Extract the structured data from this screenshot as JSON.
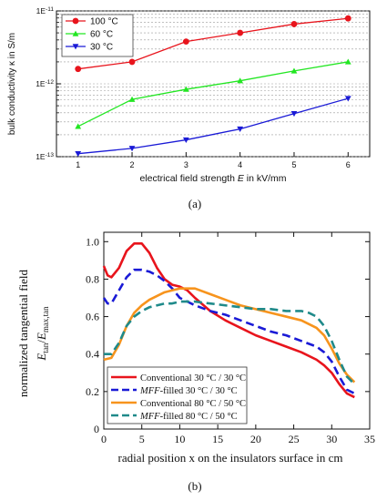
{
  "chart_data": [
    {
      "type": "line",
      "panel_label": "(a)",
      "title": "",
      "xlabel": "electrical field strength E in kV/mm",
      "xlabel_parts": [
        "electrical field strength ",
        "E",
        " in kV/mm"
      ],
      "ylabel": "bulk conductivity κ in S/m",
      "xlim": [
        0.6,
        6.4
      ],
      "ylim": [
        1e-13,
        1e-11
      ],
      "yscale": "log",
      "x_ticks": [
        1,
        2,
        3,
        4,
        5,
        6
      ],
      "x_tick_labels": [
        "1",
        "2",
        "3",
        "4",
        "5",
        "6"
      ],
      "y_ticks": [
        1e-13,
        1e-12,
        1e-11
      ],
      "y_tick_labels": [
        "1E-13",
        "1E-12",
        "1E-11"
      ],
      "grid": true,
      "legend_position": "top-left",
      "x": [
        1,
        2,
        3,
        4,
        5,
        6
      ],
      "series": [
        {
          "name": "100 °C",
          "color": "#e8141c",
          "marker": "circle",
          "values": [
            1.6e-12,
            2e-12,
            3.8e-12,
            5e-12,
            6.6e-12,
            7.9e-12
          ]
        },
        {
          "name": "60 °C",
          "color": "#22e622",
          "marker": "triangle-up",
          "values": [
            2.6e-13,
            6.1e-13,
            8.4e-13,
            1.1e-12,
            1.5e-12,
            2e-12
          ]
        },
        {
          "name": "30 °C",
          "color": "#1a1ad6",
          "marker": "triangle-down",
          "values": [
            1.1e-13,
            1.3e-13,
            1.7e-13,
            2.4e-13,
            3.9e-13,
            6.3e-13
          ]
        }
      ]
    },
    {
      "type": "line",
      "panel_label": "(b)",
      "title": "",
      "xlabel": "radial position x on the insulators surface in cm",
      "ylabel_line1": "normalized tangential field",
      "ylabel_line2": "E_tan/E_max,tan",
      "xlim": [
        0,
        35
      ],
      "ylim": [
        0,
        1.05
      ],
      "x_ticks": [
        0,
        5,
        10,
        15,
        20,
        25,
        30,
        35
      ],
      "x_tick_labels": [
        "0",
        "5",
        "10",
        "15",
        "20",
        "25",
        "30",
        "35"
      ],
      "y_ticks": [
        0,
        0.2,
        0.4,
        0.6,
        0.8,
        1.0
      ],
      "y_tick_labels": [
        "0",
        "0.2",
        "0.4",
        "0.6",
        "0.8",
        "1.0"
      ],
      "grid": false,
      "legend_position": "bottom-left",
      "series": [
        {
          "name": "Conventional 30 °C / 30 °C",
          "name_parts": [
            "",
            "Conventional 30 °C / 30 °C"
          ],
          "color": "#e8141c",
          "dash": "solid",
          "points": [
            [
              0,
              0.87
            ],
            [
              0.5,
              0.82
            ],
            [
              1,
              0.81
            ],
            [
              2,
              0.86
            ],
            [
              3,
              0.95
            ],
            [
              4,
              0.99
            ],
            [
              5,
              0.99
            ],
            [
              6,
              0.94
            ],
            [
              7,
              0.86
            ],
            [
              8,
              0.8
            ],
            [
              9,
              0.77
            ],
            [
              10,
              0.76
            ],
            [
              11,
              0.74
            ],
            [
              12,
              0.7
            ],
            [
              14,
              0.63
            ],
            [
              16,
              0.58
            ],
            [
              18,
              0.54
            ],
            [
              20,
              0.5
            ],
            [
              22,
              0.47
            ],
            [
              24,
              0.44
            ],
            [
              26,
              0.41
            ],
            [
              28,
              0.37
            ],
            [
              29,
              0.34
            ],
            [
              30,
              0.3
            ],
            [
              31,
              0.24
            ],
            [
              32,
              0.19
            ],
            [
              33,
              0.17
            ]
          ]
        },
        {
          "name": "MFF-filled 30 °C / 30 °C",
          "name_parts": [
            "MFF",
            "-filled 30 °C / 30 °C"
          ],
          "color": "#1a1ad6",
          "dash": "dashed",
          "points": [
            [
              0,
              0.7
            ],
            [
              0.5,
              0.67
            ],
            [
              1,
              0.67
            ],
            [
              2,
              0.74
            ],
            [
              3,
              0.81
            ],
            [
              4,
              0.85
            ],
            [
              5,
              0.85
            ],
            [
              6,
              0.84
            ],
            [
              7,
              0.82
            ],
            [
              8,
              0.79
            ],
            [
              9,
              0.75
            ],
            [
              10,
              0.7
            ],
            [
              11,
              0.68
            ],
            [
              12,
              0.66
            ],
            [
              14,
              0.63
            ],
            [
              16,
              0.61
            ],
            [
              18,
              0.58
            ],
            [
              20,
              0.55
            ],
            [
              22,
              0.52
            ],
            [
              24,
              0.5
            ],
            [
              26,
              0.47
            ],
            [
              28,
              0.44
            ],
            [
              29,
              0.41
            ],
            [
              30,
              0.36
            ],
            [
              31,
              0.28
            ],
            [
              32,
              0.21
            ],
            [
              33,
              0.19
            ]
          ]
        },
        {
          "name": "Conventional 80 °C / 50 °C",
          "name_parts": [
            "",
            "Conventional 80 °C / 50 °C"
          ],
          "color": "#f7941d",
          "dash": "solid",
          "points": [
            [
              0,
              0.37
            ],
            [
              1,
              0.38
            ],
            [
              2,
              0.45
            ],
            [
              3,
              0.55
            ],
            [
              4,
              0.62
            ],
            [
              5,
              0.66
            ],
            [
              6,
              0.69
            ],
            [
              7,
              0.71
            ],
            [
              8,
              0.73
            ],
            [
              9,
              0.74
            ],
            [
              10,
              0.75
            ],
            [
              11,
              0.75
            ],
            [
              12,
              0.75
            ],
            [
              14,
              0.72
            ],
            [
              16,
              0.69
            ],
            [
              18,
              0.66
            ],
            [
              20,
              0.64
            ],
            [
              22,
              0.62
            ],
            [
              24,
              0.6
            ],
            [
              26,
              0.58
            ],
            [
              28,
              0.54
            ],
            [
              29,
              0.5
            ],
            [
              30,
              0.43
            ],
            [
              31,
              0.35
            ],
            [
              32,
              0.29
            ],
            [
              33,
              0.25
            ]
          ]
        },
        {
          "name": "MFF-filled 80 °C / 50 °C",
          "name_parts": [
            "MFF",
            "-filled 80 °C / 50 °C"
          ],
          "color": "#1f8a8a",
          "dash": "dashed",
          "points": [
            [
              0,
              0.4
            ],
            [
              1,
              0.4
            ],
            [
              2,
              0.46
            ],
            [
              3,
              0.55
            ],
            [
              4,
              0.6
            ],
            [
              5,
              0.63
            ],
            [
              6,
              0.65
            ],
            [
              7,
              0.66
            ],
            [
              8,
              0.67
            ],
            [
              9,
              0.67
            ],
            [
              10,
              0.68
            ],
            [
              11,
              0.68
            ],
            [
              12,
              0.68
            ],
            [
              14,
              0.67
            ],
            [
              16,
              0.66
            ],
            [
              18,
              0.65
            ],
            [
              20,
              0.64
            ],
            [
              22,
              0.64
            ],
            [
              24,
              0.63
            ],
            [
              26,
              0.63
            ],
            [
              27,
              0.62
            ],
            [
              28,
              0.6
            ],
            [
              29,
              0.55
            ],
            [
              30,
              0.47
            ],
            [
              31,
              0.37
            ],
            [
              32,
              0.28
            ],
            [
              33,
              0.24
            ]
          ]
        }
      ]
    }
  ]
}
